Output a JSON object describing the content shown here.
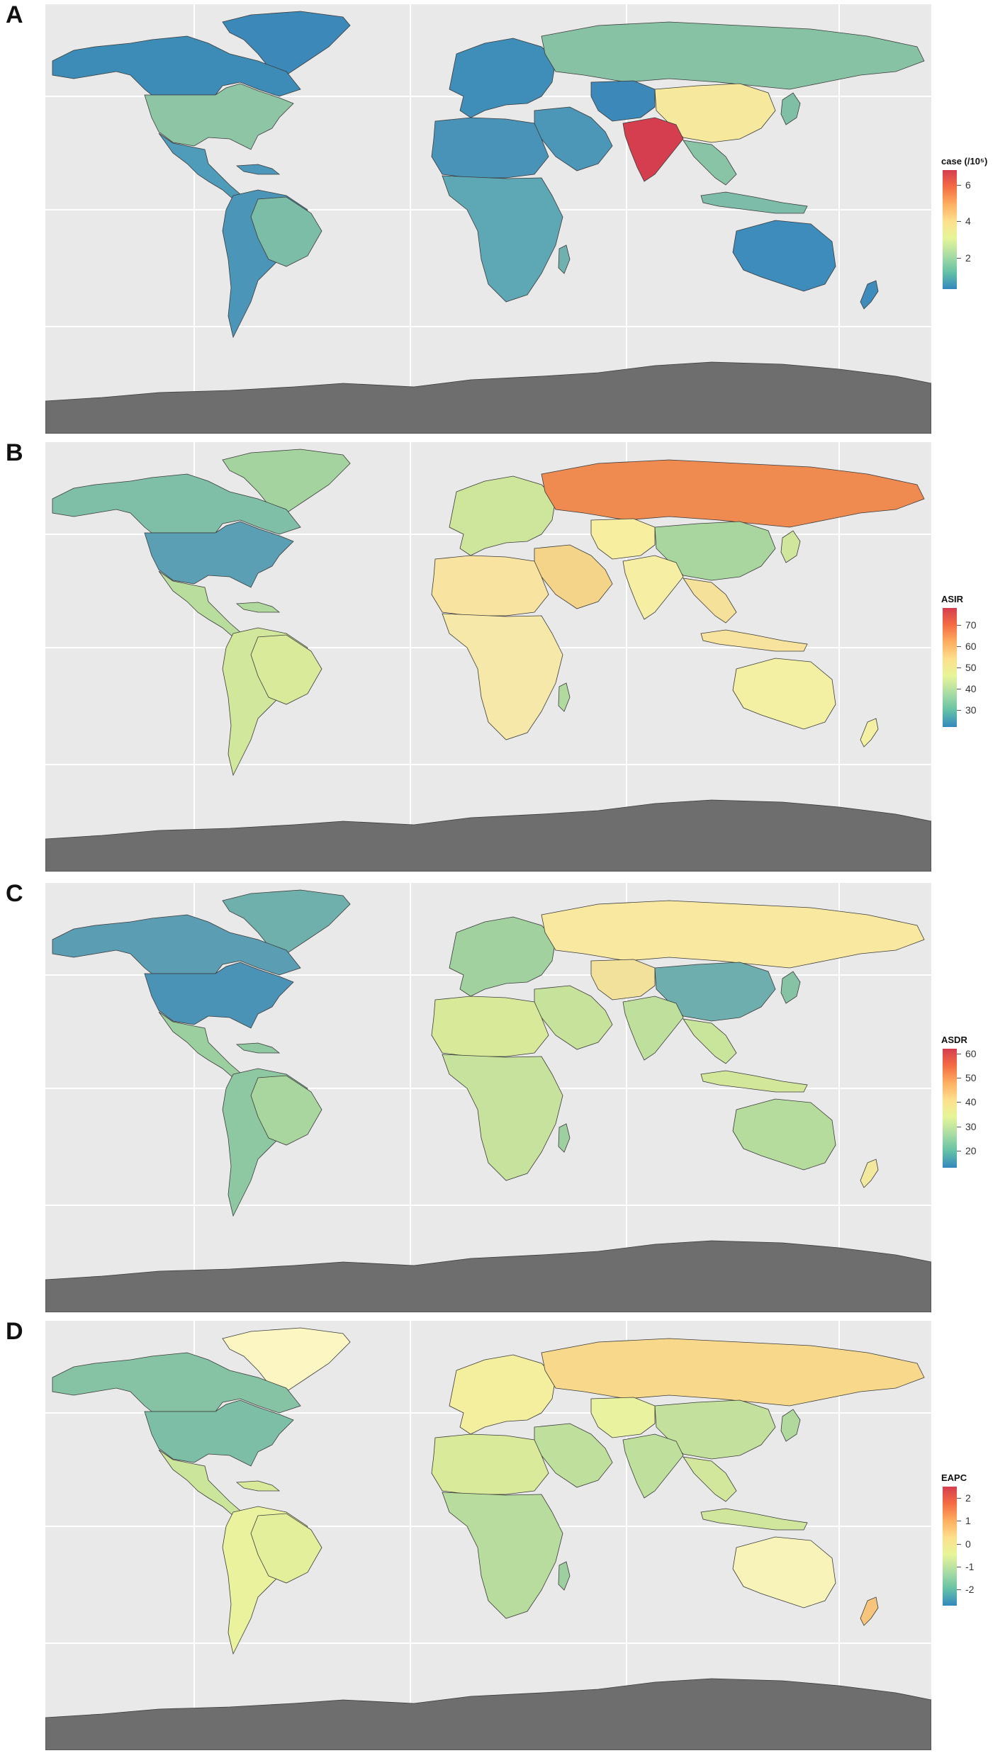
{
  "panels": [
    {
      "letter": "A",
      "legend": {
        "title": "case (/10⁵)",
        "ticks": [
          "6",
          "4",
          "2"
        ],
        "tick_values": [
          6,
          4,
          2
        ],
        "min": 0.3,
        "max": 6.8
      },
      "fills": {
        "north_america": "#3d8cb7",
        "greenland": "#3c88b8",
        "usa": "#8ec6a5",
        "mexico_central": "#4f9cba",
        "caribbean": "#4d98ba",
        "south_america": "#4a95b8",
        "brazil": "#7cbda8",
        "europe": "#3f8db9",
        "russia": "#88c2a5",
        "middle_east": "#4c96b8",
        "north_africa": "#4a93b8",
        "sub_sahara": "#5ea7b4",
        "central_asia": "#3c88b8",
        "india": "#d53e4f",
        "china": "#f6e89c",
        "se_asia": "#89c4a6",
        "japan": "#7ebfa6",
        "indonesia": "#7cbca8",
        "australia": "#3d8cbb",
        "new_zealand": "#3d8cbb",
        "madagascar": "#6fb1ae",
        "antarctica": "#6e6e6e"
      }
    },
    {
      "letter": "B",
      "legend": {
        "title": "ASIR",
        "ticks": [
          "70",
          "60",
          "50",
          "40",
          "30"
        ],
        "tick_values": [
          70,
          60,
          50,
          40,
          30
        ],
        "min": 22,
        "max": 78
      },
      "fills": {
        "north_america": "#7fbfa7",
        "greenland": "#a4d3a0",
        "usa": "#5b9fb5",
        "mexico_central": "#b8dd9c",
        "caribbean": "#b0d99e",
        "south_america": "#d1e79b",
        "brazil": "#d9ea9a",
        "europe": "#cde69b",
        "russia": "#ef8a51",
        "middle_east": "#f4d488",
        "north_africa": "#f9e3a0",
        "sub_sahara": "#f6e8a8",
        "central_asia": "#f8ee9f",
        "india": "#f6eea2",
        "china": "#a9d69f",
        "se_asia": "#f6e19a",
        "japan": "#cfe69c",
        "indonesia": "#f7e39d",
        "australia": "#f3efa3",
        "new_zealand": "#f3efa3",
        "madagascar": "#b2da9e",
        "antarctica": "#6e6e6e"
      }
    },
    {
      "letter": "C",
      "legend": {
        "title": "ASDR",
        "ticks": [
          "60",
          "50",
          "40",
          "30",
          "20"
        ],
        "tick_values": [
          60,
          50,
          40,
          30,
          20
        ],
        "min": 13,
        "max": 62
      },
      "fills": {
        "north_america": "#5b9eb4",
        "greenland": "#6fb0ad",
        "usa": "#4b92b7",
        "mexico_central": "#9ccf9f",
        "caribbean": "#8fc8a1",
        "south_america": "#8ec8a3",
        "brazil": "#a9d69f",
        "europe": "#a1d19f",
        "russia": "#f8e8a0",
        "middle_east": "#c7e39b",
        "north_africa": "#d8ea9a",
        "sub_sahara": "#c6e29c",
        "central_asia": "#f2e19b",
        "india": "#bfe09c",
        "china": "#6eaeae",
        "se_asia": "#c9e49b",
        "japan": "#86c3a4",
        "indonesia": "#d3e79a",
        "australia": "#b6dc9d",
        "new_zealand": "#f3e99e",
        "madagascar": "#9dcfa0",
        "antarctica": "#6e6e6e"
      }
    },
    {
      "letter": "D",
      "legend": {
        "title": "EAPC",
        "ticks": [
          "2",
          "1",
          "0",
          "-1",
          "-2"
        ],
        "tick_values": [
          2,
          1,
          0,
          -1,
          -2
        ],
        "min": -2.7,
        "max": 2.5
      },
      "fills": {
        "north_america": "#86c3a4",
        "greenland": "#fbf6c2",
        "usa": "#7dbea6",
        "mexico_central": "#cbe59b",
        "caribbean": "#d8ea9a",
        "south_america": "#eaf29d",
        "brazil": "#e4ef9c",
        "europe": "#f4ee9f",
        "russia": "#f8d98c",
        "middle_east": "#bfe09c",
        "north_africa": "#d9ea9a",
        "sub_sahara": "#b8dc9d",
        "central_asia": "#e9f29e",
        "india": "#bfe09c",
        "china": "#c3e19c",
        "se_asia": "#d2e79b",
        "japan": "#b1d99e",
        "indonesia": "#cfe69c",
        "australia": "#f8f4b9",
        "new_zealand": "#f6c47a",
        "madagascar": "#9ecfa1",
        "antarctica": "#6e6e6e"
      }
    }
  ]
}
